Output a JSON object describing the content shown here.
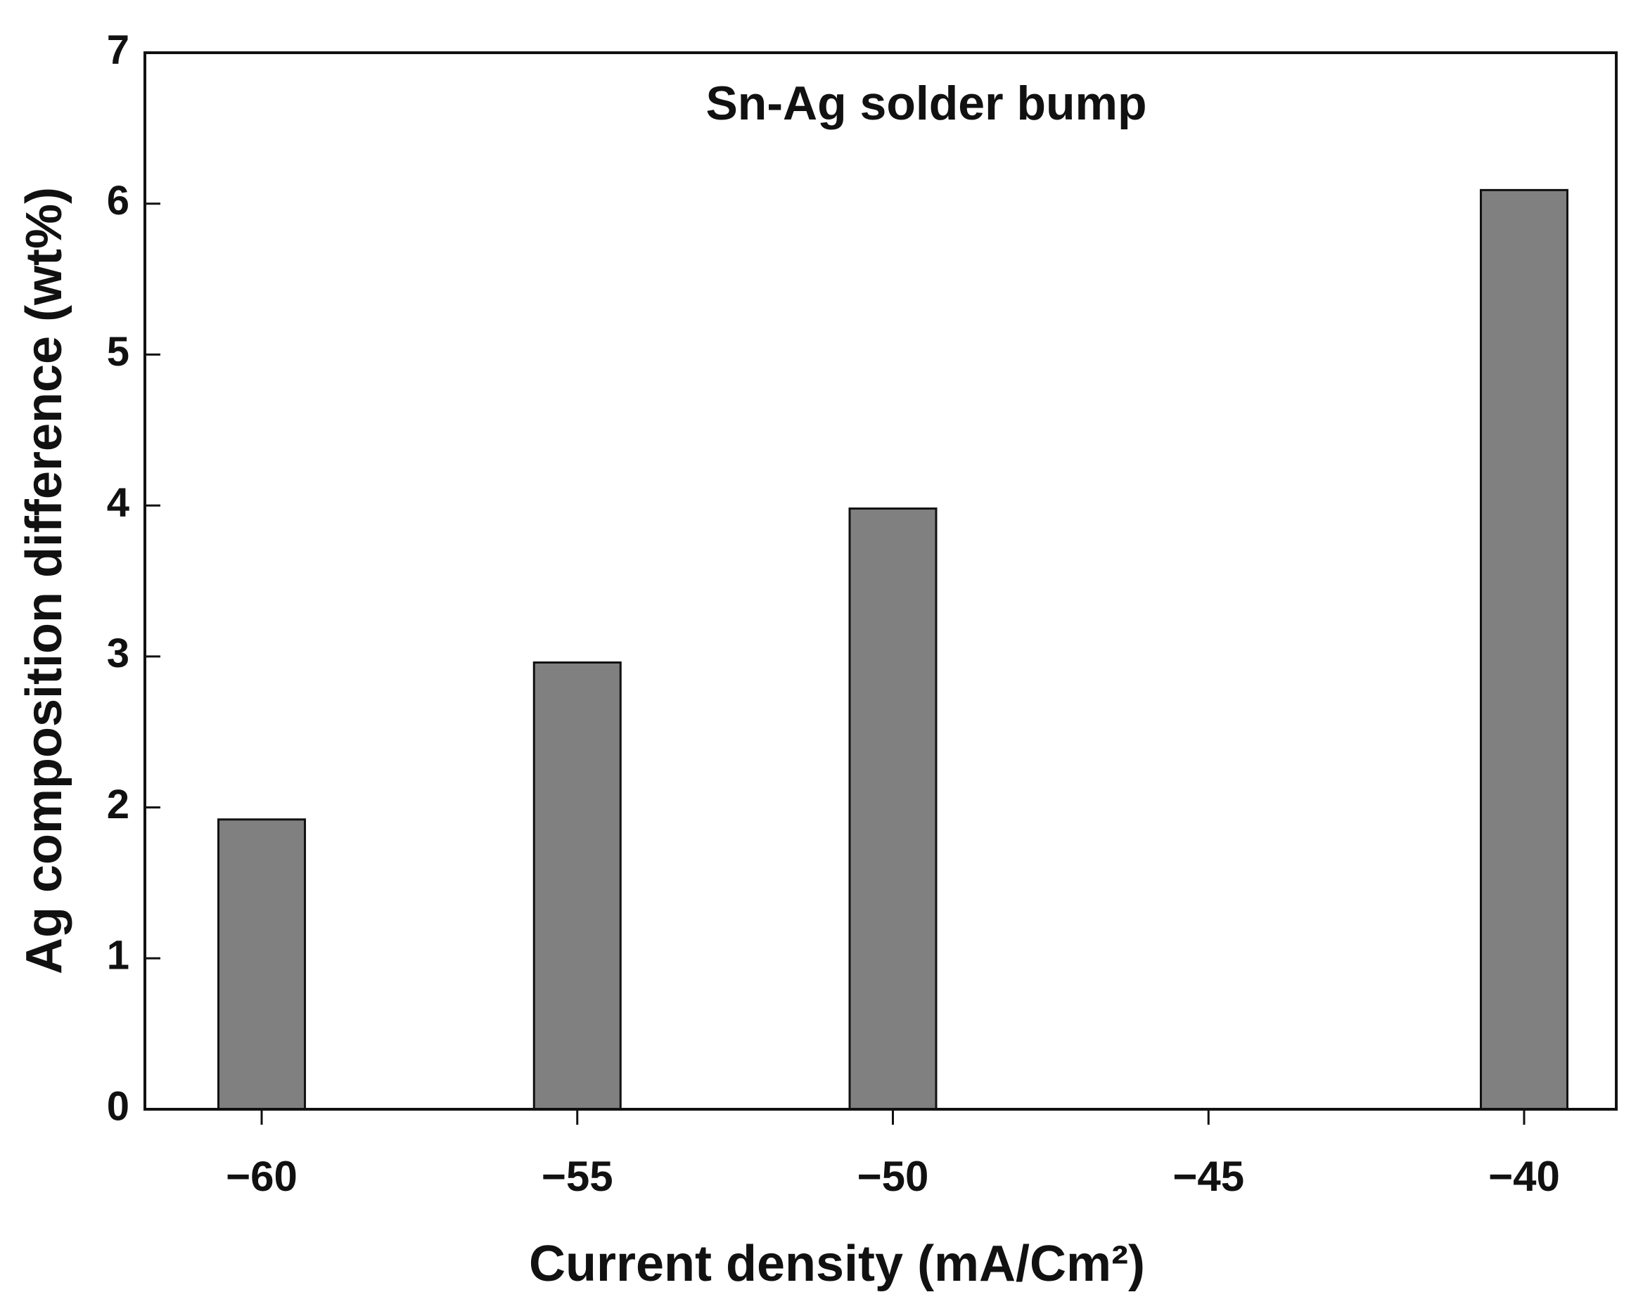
{
  "chart_data": {
    "type": "bar",
    "title": "Sn-Ag solder bump",
    "x_label": "Current density (mA/Cm²)",
    "y_label": "Ag composition difference (wt%)",
    "x": [
      -60,
      -55,
      -50,
      -40
    ],
    "values": [
      1.92,
      2.96,
      3.98,
      6.09
    ],
    "color": "#808080",
    "xlim": [
      -61.85,
      -38.54
    ],
    "xticks": [
      {
        "value": -60,
        "label": "−60"
      },
      {
        "value": -55,
        "label": "−55"
      },
      {
        "value": -50,
        "label": "−50"
      },
      {
        "value": -45,
        "label": "−45"
      },
      {
        "value": -40,
        "label": "−40"
      }
    ],
    "ylim": [
      0,
      7
    ],
    "yticks": [
      0,
      1,
      2,
      3,
      4,
      5,
      6,
      7
    ],
    "grid": false
  }
}
